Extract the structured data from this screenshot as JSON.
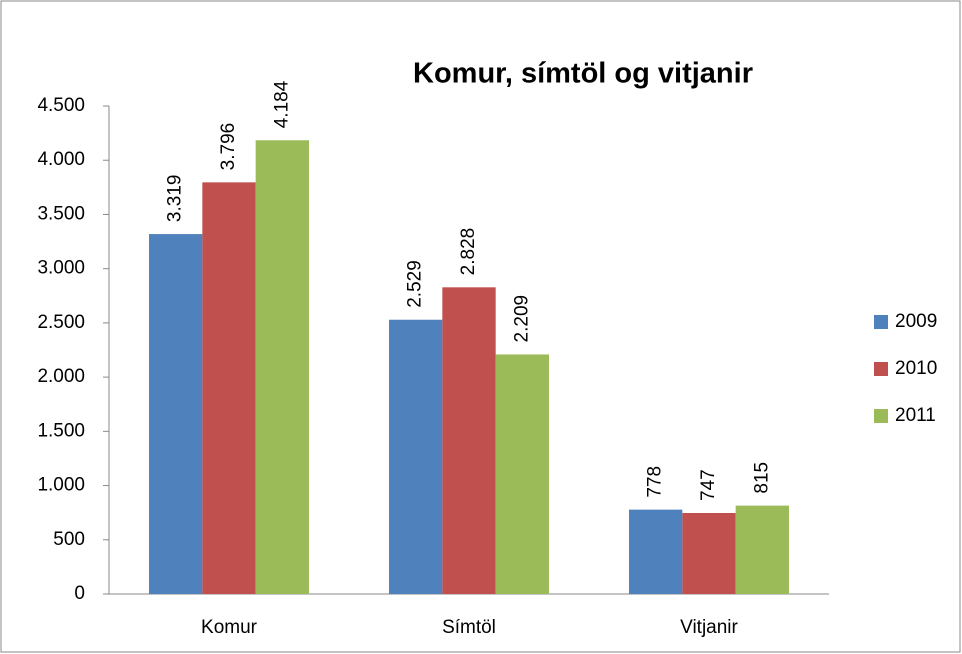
{
  "chart_data": {
    "type": "bar",
    "title": "Komur, símtöl og vitjanir",
    "categories": [
      "Komur",
      "Símtöl",
      "Vitjanir"
    ],
    "series": [
      {
        "name": "2009",
        "color": "#4f81bd",
        "values": [
          3319,
          2529,
          778
        ],
        "value_labels": [
          "3.319",
          "2.529",
          "778"
        ]
      },
      {
        "name": "2010",
        "color": "#c0504d",
        "values": [
          3796,
          2828,
          747
        ],
        "value_labels": [
          "3.796",
          "2.828",
          "747"
        ]
      },
      {
        "name": "2011",
        "color": "#9bbb59",
        "values": [
          4184,
          2209,
          815
        ],
        "value_labels": [
          "4.184",
          "2.209",
          "815"
        ]
      }
    ],
    "ylim": [
      0,
      4500
    ],
    "yticks": [
      0,
      500,
      {
        "value": 1000,
        "label": "1.000"
      },
      {
        "value": 1500,
        "label": "1.500"
      },
      {
        "value": 2000,
        "label": "2.000"
      },
      {
        "value": 2500,
        "label": "2.500"
      },
      {
        "value": 3000,
        "label": "3.000"
      },
      {
        "value": 3500,
        "label": "3.500"
      },
      {
        "value": 4000,
        "label": "4.000"
      },
      {
        "value": 4500,
        "label": "4.500"
      }
    ],
    "grid": false,
    "legend": "right"
  }
}
